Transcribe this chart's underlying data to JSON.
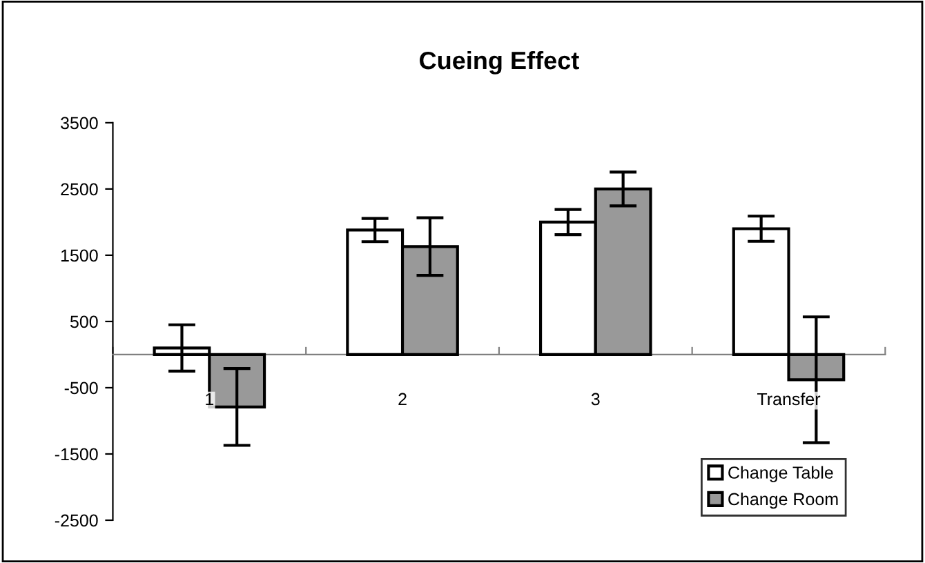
{
  "chart_data": {
    "type": "bar",
    "title": "Cueing Effect",
    "categories": [
      "1",
      "2",
      "3",
      "Transfer"
    ],
    "series": [
      {
        "name": "Change Table",
        "color": "#ffffff",
        "values": [
          100,
          1880,
          2000,
          1900
        ],
        "errors": [
          350,
          175,
          190,
          190
        ]
      },
      {
        "name": "Change Room",
        "color": "#999999",
        "values": [
          -790,
          1630,
          2500,
          -380
        ],
        "errors": [
          580,
          435,
          255,
          950
        ]
      }
    ],
    "ylim": [
      -2500,
      3500
    ],
    "yticks": [
      3500,
      2500,
      1500,
      500,
      -500,
      -1500,
      -2500
    ],
    "grid": false,
    "legend": "bottom right"
  }
}
